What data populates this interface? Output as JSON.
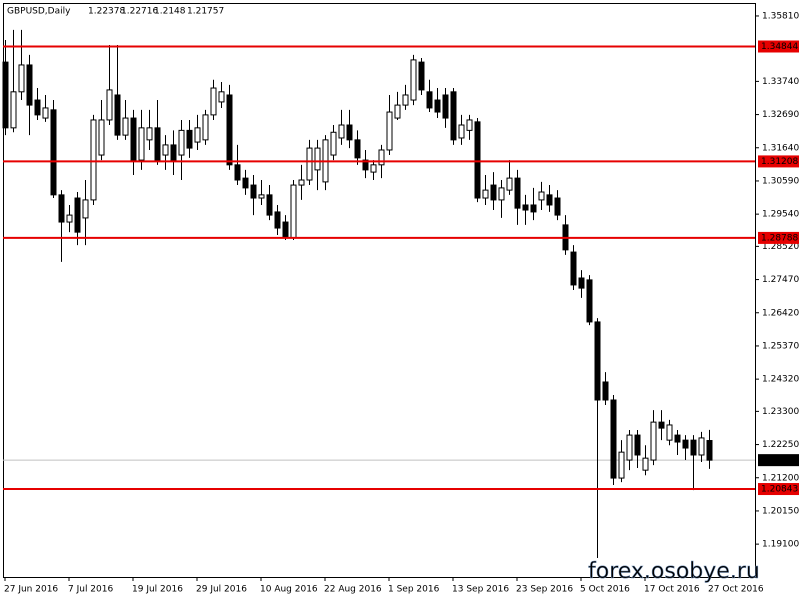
{
  "chart_data": {
    "type": "candlestick",
    "title": "GBPUSD,Daily",
    "watermark": "forex.osobye.ru",
    "categories": [
      "27 Jun 2016",
      null,
      null,
      null,
      null,
      null,
      null,
      null,
      "7 Jul 2016",
      null,
      null,
      null,
      null,
      null,
      null,
      null,
      "19 Jul 2016",
      null,
      null,
      null,
      null,
      null,
      null,
      null,
      "29 Jul 2016",
      null,
      null,
      null,
      null,
      null,
      null,
      null,
      "10 Aug 2016",
      null,
      null,
      null,
      null,
      null,
      null,
      null,
      "22 Aug 2016",
      null,
      null,
      null,
      null,
      null,
      null,
      null,
      "1 Sep 2016",
      null,
      null,
      null,
      null,
      null,
      null,
      null,
      "13 Sep 2016",
      null,
      null,
      null,
      null,
      null,
      null,
      null,
      "23 Sep 2016",
      null,
      null,
      null,
      null,
      null,
      null,
      null,
      "5 Oct 2016",
      null,
      null,
      null,
      null,
      null,
      null,
      null,
      "17 Oct 2016",
      null,
      null,
      null,
      null,
      null,
      null,
      null,
      "27 Oct 2016"
    ],
    "open": [
      1.3435,
      1.3227,
      1.3341,
      1.3426,
      1.3315,
      1.3258,
      1.3284,
      1.3015,
      1.2929,
      1.3005,
      1.2942,
      1.2999,
      1.3141,
      1.3252,
      1.3331,
      1.3204,
      1.3258,
      1.3125,
      1.3189,
      1.3227,
      1.3141,
      1.3173,
      1.3141,
      1.3219,
      1.3182,
      1.3189,
      1.3268,
      1.3309,
      1.3331,
      1.311,
      1.3068,
      1.3046,
      1.3005,
      1.3015,
      1.2961,
      1.2929,
      1.2879,
      1.3046,
      1.3062,
      1.3094,
      1.3056,
      1.3141,
      1.3195,
      1.3236,
      1.3189,
      1.3125,
      1.3087,
      1.311,
      1.3157,
      1.3258,
      1.3299,
      1.3315,
      1.3435,
      1.3341,
      1.3315,
      1.3331,
      1.3341,
      1.3195,
      1.3219,
      1.3246,
      1.3005,
      1.3046,
      1.2999,
      1.303,
      1.3068,
      1.2983,
      1.2983,
      1.2999,
      1.3015,
      1.3005,
      1.292,
      1.2834,
      1.2752,
      1.2746,
      1.2613,
      1.2423,
      1.2366,
      1.2119,
      1.2176,
      1.2255,
      1.2144,
      1.2176,
      1.2296,
      1.2239,
      1.2255,
      1.2239,
      1.2239,
      1.2192,
      1.22378
    ],
    "high": [
      1.3505,
      1.3537,
      1.3537,
      1.3458,
      1.3353,
      1.3331,
      1.3315,
      1.303,
      1.2983,
      1.3024,
      1.3062,
      1.3268,
      1.3315,
      1.3489,
      1.3489,
      1.3315,
      1.3284,
      1.3284,
      1.3284,
      1.3315,
      1.3204,
      1.3219,
      1.3252,
      1.3252,
      1.3268,
      1.3284,
      1.3379,
      1.3372,
      1.3363,
      1.3173,
      1.3094,
      1.3078,
      1.3062,
      1.3046,
      1.2983,
      1.2951,
      1.3062,
      1.311,
      1.3189,
      1.3189,
      1.3204,
      1.3236,
      1.3284,
      1.3284,
      1.3219,
      1.3157,
      1.3125,
      1.3173,
      1.3331,
      1.3341,
      1.3363,
      1.3458,
      1.3448,
      1.3379,
      1.3353,
      1.3353,
      1.3353,
      1.3268,
      1.3268,
      1.3258,
      1.3078,
      1.3087,
      1.3062,
      1.3125,
      1.3094,
      1.3015,
      1.3037,
      1.3056,
      1.3046,
      1.303,
      1.2951,
      1.2856,
      1.2777,
      1.2761,
      1.2625,
      1.2454,
      1.2382,
      1.2239,
      1.2271,
      1.2271,
      1.2223,
      1.2334,
      1.2334,
      1.2303,
      1.2271,
      1.2255,
      1.2255,
      1.2265,
      1.22716
    ],
    "low": [
      1.3204,
      1.3213,
      1.3315,
      1.3204,
      1.3252,
      1.3246,
      1.3005,
      1.2803,
      1.2897,
      1.2856,
      1.2856,
      1.2983,
      1.3125,
      1.3236,
      1.3189,
      1.3189,
      1.3078,
      1.3094,
      1.3157,
      1.311,
      1.3094,
      1.3078,
      1.3062,
      1.3132,
      1.3157,
      1.3173,
      1.3252,
      1.329,
      1.3094,
      1.3046,
      1.3015,
      1.2951,
      1.2983,
      1.2935,
      1.2888,
      1.2872,
      1.2872,
      1.2999,
      1.3046,
      1.303,
      1.303,
      1.3125,
      1.3173,
      1.3163,
      1.311,
      1.3068,
      1.3062,
      1.3068,
      1.3141,
      1.3252,
      1.3284,
      1.3299,
      1.3331,
      1.3277,
      1.3258,
      1.3227,
      1.3173,
      1.3173,
      1.3189,
      1.2992,
      1.2983,
      1.2967,
      1.2942,
      1.3015,
      1.292,
      1.292,
      1.2935,
      1.2967,
      1.2961,
      1.2935,
      1.2825,
      1.2714,
      1.2689,
      1.2603,
      1.1866,
      1.235,
      1.2097,
      1.2106,
      1.2144,
      1.2151,
      1.2128,
      1.216,
      1.2239,
      1.2223,
      1.2192,
      1.2176,
      1.2081,
      1.217,
      1.2148
    ],
    "close": [
      1.3227,
      1.3341,
      1.3426,
      1.3299,
      1.3268,
      1.329,
      1.3015,
      1.2929,
      1.2951,
      1.2897,
      1.2999,
      1.3252,
      1.3252,
      1.3347,
      1.3204,
      1.3258,
      1.3125,
      1.3227,
      1.3227,
      1.3125,
      1.3173,
      1.3125,
      1.3219,
      1.3163,
      1.3227,
      1.3268,
      1.3353,
      1.3341,
      1.311,
      1.3062,
      1.3037,
      1.3005,
      1.3015,
      1.2951,
      1.291,
      1.2879,
      1.3046,
      1.3062,
      1.3163,
      1.3163,
      1.3189,
      1.3213,
      1.3236,
      1.3189,
      1.3132,
      1.3094,
      1.311,
      1.3157,
      1.3277,
      1.3299,
      1.3331,
      1.3442,
      1.3347,
      1.329,
      1.3277,
      1.3258,
      1.3189,
      1.3236,
      1.3252,
      1.3005,
      1.303,
      1.2999,
      1.3037,
      1.3068,
      1.2973,
      1.2967,
      1.2961,
      1.3024,
      1.2983,
      1.2951,
      1.2841,
      1.273,
      1.272,
      1.2613,
      1.2366,
      1.2366,
      1.2119,
      1.2201,
      1.2255,
      1.2192,
      1.2182,
      1.2296,
      1.2277,
      1.2287,
      1.2233,
      1.2214,
      1.2192,
      1.2246,
      1.21757
    ],
    "up_color": "#ffffff",
    "down_color": "#000000",
    "hlines": [
      {
        "value": 1.34844,
        "color": "#e60000"
      },
      {
        "value": 1.31208,
        "color": "#e60000"
      },
      {
        "value": 1.28788,
        "color": "#e60000"
      },
      {
        "value": 1.20843,
        "color": "#e60000"
      }
    ],
    "ylim": [
      1.1806,
      1.3622
    ],
    "yticks": [
      {
        "value": 1.3581,
        "label": "1.35810"
      },
      {
        "value": 1.3374,
        "label": "1.33740"
      },
      {
        "value": 1.3269,
        "label": "1.32690"
      },
      {
        "value": 1.3164,
        "label": "1.31640"
      },
      {
        "value": 1.3059,
        "label": "1.30590"
      },
      {
        "value": 1.2954,
        "label": "1.29540"
      },
      {
        "value": 1.2852,
        "label": "1.28520"
      },
      {
        "value": 1.2747,
        "label": "1.27470"
      },
      {
        "value": 1.2642,
        "label": "1.26420"
      },
      {
        "value": 1.2537,
        "label": "1.25370"
      },
      {
        "value": 1.2432,
        "label": "1.24320"
      },
      {
        "value": 1.233,
        "label": "1.23300"
      },
      {
        "value": 1.2225,
        "label": "1.22250"
      },
      {
        "value": 1.212,
        "label": "1.21200"
      },
      {
        "value": 1.2015,
        "label": "1.20150"
      },
      {
        "value": 1.191,
        "label": "1.19100"
      }
    ]
  }
}
